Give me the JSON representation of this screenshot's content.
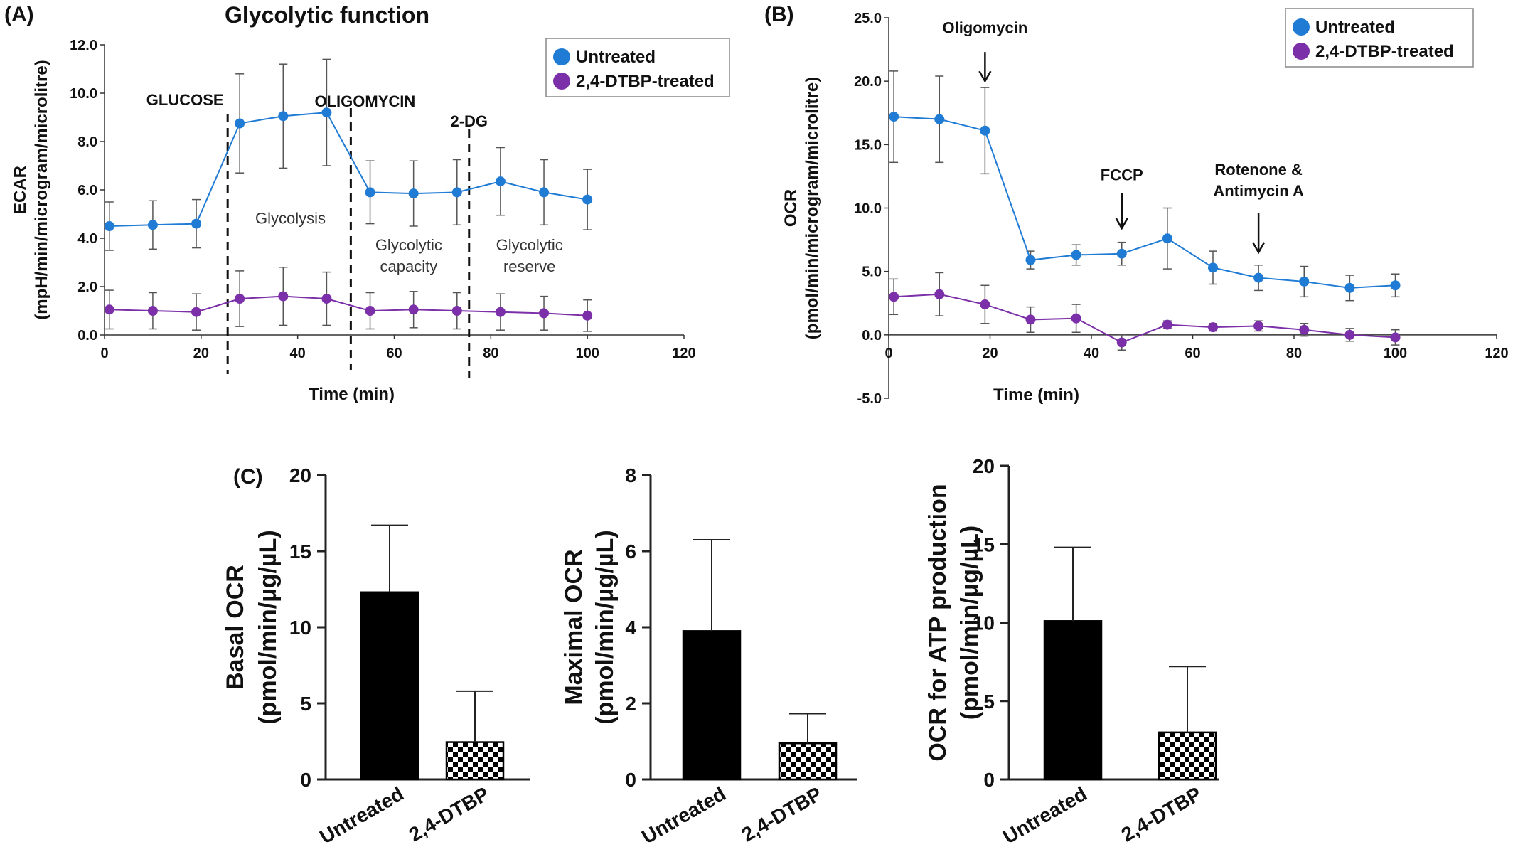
{
  "panels": {
    "a": "(A)",
    "b": "(B)",
    "c": "(C)"
  },
  "colors": {
    "untreated": "#1f7bd4",
    "treated": "#7b2fa8",
    "bar_untreated": "#000000"
  },
  "chart_data": [
    {
      "id": "A",
      "type": "line",
      "title": "Glycolytic function",
      "xlabel": "Time (min)",
      "ylabel": "ECAR",
      "ylabel2": "(mpH/min/microgram/microlitre)",
      "xlim": [
        0,
        120
      ],
      "ylim": [
        0,
        12
      ],
      "xticks": [
        0,
        20,
        40,
        60,
        80,
        100,
        120
      ],
      "yticks": [
        "0.0",
        "2.0",
        "4.0",
        "6.0",
        "8.0",
        "10.0",
        "12.0"
      ],
      "x": [
        1,
        10,
        19,
        28,
        37,
        46,
        55,
        64,
        73,
        82,
        91,
        100
      ],
      "series": [
        {
          "name": "Untreated",
          "values": [
            4.5,
            4.55,
            4.6,
            8.75,
            9.05,
            9.2,
            5.9,
            5.85,
            5.9,
            6.35,
            5.9,
            5.6
          ],
          "errors": [
            1.0,
            1.0,
            1.0,
            2.05,
            2.15,
            2.2,
            1.3,
            1.35,
            1.35,
            1.4,
            1.35,
            1.25
          ]
        },
        {
          "name": "2,4-DTBP-treated",
          "values": [
            1.05,
            1.0,
            0.95,
            1.5,
            1.6,
            1.5,
            1.0,
            1.05,
            1.0,
            0.95,
            0.9,
            0.8
          ],
          "errors": [
            0.8,
            0.75,
            0.75,
            1.15,
            1.2,
            1.1,
            0.75,
            0.75,
            0.75,
            0.75,
            0.7,
            0.65
          ]
        }
      ],
      "vlines": [
        {
          "x": 25.5,
          "label": "GLUCOSE"
        },
        {
          "x": 51,
          "label": "OLIGOMYCIN"
        },
        {
          "x": 75.5,
          "label": "2-DG"
        }
      ],
      "regions": [
        {
          "x": 38.5,
          "y": 4.6,
          "lines": [
            "Glycolysis"
          ]
        },
        {
          "x": 63,
          "y": 3.5,
          "lines": [
            "Glycolytic",
            "capacity"
          ]
        },
        {
          "x": 88,
          "y": 3.5,
          "lines": [
            "Glycolytic",
            "reserve"
          ]
        }
      ],
      "legend": "top-right"
    },
    {
      "id": "B",
      "type": "line",
      "title": "",
      "xlabel": "Time (min)",
      "ylabel": "OCR",
      "ylabel2": "(pmol/min/microgram/microlitre)",
      "xlim": [
        0,
        120
      ],
      "ylim": [
        -5,
        25
      ],
      "xticks": [
        0,
        20,
        40,
        60,
        80,
        100,
        120
      ],
      "yticks": [
        "-5.0",
        "0.0",
        "5.0",
        "10.0",
        "15.0",
        "20.0",
        "25.0"
      ],
      "x": [
        1,
        10,
        19,
        28,
        37,
        46,
        55,
        64,
        73,
        82,
        91,
        100
      ],
      "series": [
        {
          "name": "Untreated",
          "values": [
            17.2,
            17.0,
            16.1,
            5.9,
            6.3,
            6.4,
            7.6,
            5.3,
            4.5,
            4.2,
            3.7,
            3.9
          ],
          "errors": [
            3.6,
            3.4,
            3.4,
            0.7,
            0.8,
            0.9,
            2.4,
            1.3,
            1.0,
            1.2,
            1.0,
            0.9
          ]
        },
        {
          "name": "2,4-DTBP-treated",
          "values": [
            3.0,
            3.2,
            2.4,
            1.2,
            1.3,
            -0.6,
            0.8,
            0.6,
            0.7,
            0.4,
            0.0,
            -0.2
          ],
          "errors": [
            1.4,
            1.7,
            1.5,
            1.0,
            1.1,
            0.6,
            0.3,
            0.3,
            0.4,
            0.5,
            0.5,
            0.6
          ]
        }
      ],
      "arrows": [
        {
          "x": 19,
          "label_lines": [
            "Oligomycin"
          ],
          "arrow_top": 22.3,
          "arrow_bottom": 20.0,
          "label_y": 23.8
        },
        {
          "x": 46,
          "label_lines": [
            "FCCP"
          ],
          "arrow_top": 11.2,
          "arrow_bottom": 8.4,
          "label_y": 12.2
        },
        {
          "x": 73,
          "label_lines": [
            "Rotenone &",
            "Antimycin A"
          ],
          "arrow_top": 9.6,
          "arrow_bottom": 6.5,
          "label_y": 12.6
        }
      ],
      "legend": "top-right"
    },
    {
      "id": "C1",
      "type": "bar",
      "categories": [
        "Untreated",
        "2,4-DTBP"
      ],
      "values": [
        12.3,
        2.45
      ],
      "errors": [
        4.4,
        3.35
      ],
      "ylabel": "Basal OCR",
      "ylabel2": "(pmol/min/µg/µL)",
      "ylim": [
        0,
        20
      ],
      "yticks": [
        0,
        5,
        10,
        15,
        20
      ]
    },
    {
      "id": "C2",
      "type": "bar",
      "categories": [
        "Untreated",
        "2,4-DTBP"
      ],
      "values": [
        3.9,
        0.95
      ],
      "errors": [
        2.4,
        0.78
      ],
      "ylabel": "Maximal OCR",
      "ylabel2": "(pmol/min/µg/µL)",
      "ylim": [
        0,
        8
      ],
      "yticks": [
        0,
        2,
        4,
        6,
        8
      ]
    },
    {
      "id": "C3",
      "type": "bar",
      "categories": [
        "Untreated",
        "2,4-DTBP"
      ],
      "values": [
        10.1,
        3.0
      ],
      "errors": [
        4.7,
        4.2
      ],
      "ylabel": "OCR for ATP production",
      "ylabel2": "(pmol/min/µg/µL)",
      "ylim": [
        0,
        20
      ],
      "yticks": [
        0,
        5,
        10,
        15,
        20
      ]
    }
  ]
}
